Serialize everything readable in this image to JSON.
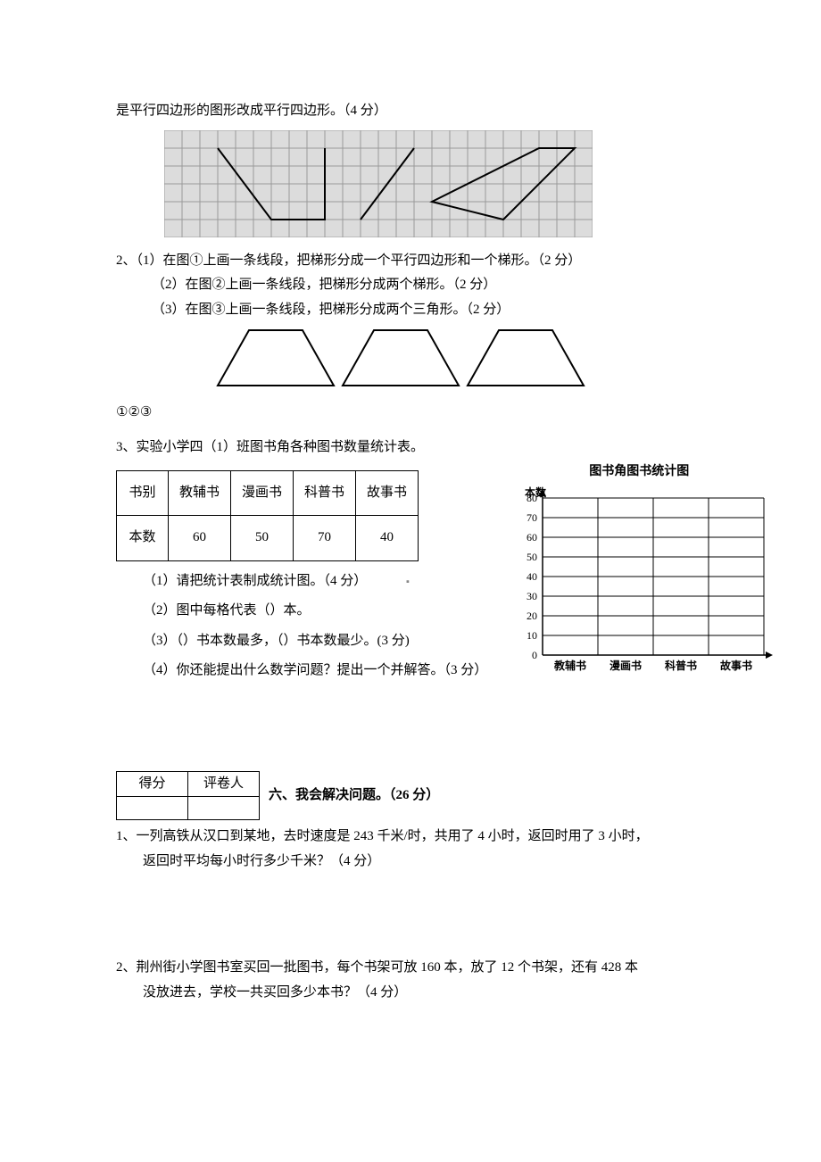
{
  "q1": {
    "text": "是平行四边形的图形改成平行四边形。（4 分）",
    "grid": {
      "cols": 24,
      "rows": 6,
      "cell": 20,
      "bg": "#dcdcdc",
      "line_color": "#9a9a9a",
      "stroke": "#000000",
      "stroke_width": 2,
      "shape1": [
        [
          3,
          1
        ],
        [
          6,
          5
        ],
        [
          9,
          5
        ],
        [
          9,
          1
        ]
      ],
      "shape2_line": [
        [
          11,
          5
        ],
        [
          14,
          1
        ]
      ],
      "shape3": [
        [
          15,
          4
        ],
        [
          21,
          1
        ],
        [
          23,
          1
        ],
        [
          19,
          5
        ]
      ]
    }
  },
  "q2": {
    "intro": "2、（1）在图①上画一条线段，把梯形分成一个平行四边形和一个梯形。（2 分）",
    "sub2": "（2）在图②上画一条线段，把梯形分成两个梯形。（2 分）",
    "sub3": "（3）在图③上画一条线段，把梯形分成两个三角形。（2 分）",
    "labels": "①②③",
    "trapezoid": {
      "stroke": "#000000",
      "stroke_width": 2
    }
  },
  "q3": {
    "title": "3、实验小学四（1）班图书角各种图书数量统计表。",
    "table": {
      "header": [
        "书别",
        "教辅书",
        "漫画书",
        "科普书",
        "故事书"
      ],
      "row_label": "本数",
      "values": [
        60,
        50,
        70,
        40
      ]
    },
    "chart": {
      "title": "图书角图书统计图",
      "ylabel": "本数",
      "ymax": 80,
      "ystep": 10,
      "categories": [
        "教辅书",
        "漫画书",
        "科普书",
        "故事书"
      ],
      "grid_color": "#000000",
      "axis_color": "#000000",
      "font_size": 12
    },
    "subs": {
      "s1": "（1）请把统计表制成统计图。（4 分）",
      "s2": "（2）图中每格代表（）本。",
      "s3": "（3）（）书本数最多，（）书本数最少。(3 分)",
      "s4": "（4）你还能提出什么数学问题？提出一个并解答。（3 分）"
    },
    "marker": "▪"
  },
  "section6": {
    "score_headers": [
      "得分",
      "评卷人"
    ],
    "title": "六、我会解决问题。（26 分）"
  },
  "p1": {
    "l1": "1、一列高铁从汉口到某地，去时速度是 243 千米/时，共用了 4 小时，返回时用了 3 小时，",
    "l2": "返回时平均每小时行多少千米？（4 分）"
  },
  "p2": {
    "l1": "2、荆州街小学图书室买回一批图书，每个书架可放 160 本，放了 12 个书架，还有 428 本",
    "l2": "没放进去，学校一共买回多少本书？（4 分）"
  }
}
